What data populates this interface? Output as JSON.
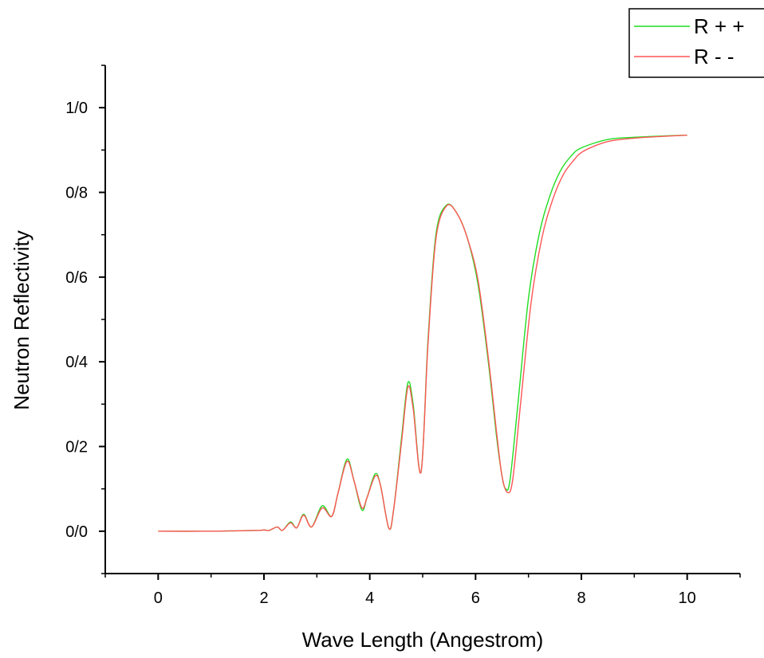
{
  "chart_data": {
    "type": "line",
    "title": "",
    "xlabel": "Wave Length (Angestrom)",
    "ylabel": "Neutron Reflectivity",
    "xlim": [
      -1,
      11
    ],
    "ylim": [
      -0.1,
      1.1
    ],
    "x_ticks": [
      0,
      2,
      4,
      6,
      8,
      10
    ],
    "x_tick_labels": [
      "0",
      "2",
      "4",
      "6",
      "8",
      "10"
    ],
    "y_ticks": [
      0.0,
      0.2,
      0.4,
      0.6,
      0.8,
      1.0
    ],
    "y_tick_labels": [
      "0/0",
      "0/2",
      "0/4",
      "0/6",
      "0/8",
      "1/0"
    ],
    "grid": false,
    "legend_position": "top-right",
    "series": [
      {
        "name": "R + +",
        "color": "#22dd22",
        "points": [
          [
            0,
            0.0
          ],
          [
            1.0,
            0.0
          ],
          [
            1.5,
            0.001
          ],
          [
            1.9,
            0.002
          ],
          [
            2.0,
            0.003
          ],
          [
            2.1,
            0.002
          ],
          [
            2.25,
            0.01
          ],
          [
            2.35,
            0.002
          ],
          [
            2.5,
            0.022
          ],
          [
            2.62,
            0.008
          ],
          [
            2.75,
            0.04
          ],
          [
            2.9,
            0.01
          ],
          [
            3.1,
            0.06
          ],
          [
            3.28,
            0.035
          ],
          [
            3.4,
            0.09
          ],
          [
            3.57,
            0.17
          ],
          [
            3.7,
            0.12
          ],
          [
            3.85,
            0.05
          ],
          [
            3.95,
            0.08
          ],
          [
            4.1,
            0.135
          ],
          [
            4.2,
            0.11
          ],
          [
            4.36,
            0.007
          ],
          [
            4.45,
            0.05
          ],
          [
            4.6,
            0.22
          ],
          [
            4.72,
            0.35
          ],
          [
            4.82,
            0.3
          ],
          [
            4.97,
            0.14
          ],
          [
            5.1,
            0.45
          ],
          [
            5.25,
            0.7
          ],
          [
            5.45,
            0.77
          ],
          [
            5.65,
            0.75
          ],
          [
            5.85,
            0.69
          ],
          [
            6.05,
            0.58
          ],
          [
            6.25,
            0.39
          ],
          [
            6.4,
            0.22
          ],
          [
            6.5,
            0.13
          ],
          [
            6.57,
            0.1
          ],
          [
            6.65,
            0.12
          ],
          [
            6.8,
            0.3
          ],
          [
            7.0,
            0.55
          ],
          [
            7.2,
            0.7
          ],
          [
            7.4,
            0.79
          ],
          [
            7.6,
            0.85
          ],
          [
            7.8,
            0.885
          ],
          [
            8.0,
            0.905
          ],
          [
            8.5,
            0.925
          ],
          [
            9.0,
            0.93
          ],
          [
            9.5,
            0.933
          ],
          [
            10.0,
            0.935
          ]
        ]
      },
      {
        "name": "R - -",
        "color": "#ff5555",
        "points": [
          [
            0,
            0.0
          ],
          [
            1.0,
            0.0
          ],
          [
            1.5,
            0.001
          ],
          [
            1.9,
            0.002
          ],
          [
            2.0,
            0.003
          ],
          [
            2.1,
            0.002
          ],
          [
            2.25,
            0.01
          ],
          [
            2.35,
            0.002
          ],
          [
            2.5,
            0.02
          ],
          [
            2.62,
            0.008
          ],
          [
            2.75,
            0.038
          ],
          [
            2.9,
            0.01
          ],
          [
            3.1,
            0.055
          ],
          [
            3.28,
            0.035
          ],
          [
            3.4,
            0.09
          ],
          [
            3.57,
            0.165
          ],
          [
            3.7,
            0.12
          ],
          [
            3.85,
            0.055
          ],
          [
            3.95,
            0.08
          ],
          [
            4.1,
            0.13
          ],
          [
            4.2,
            0.11
          ],
          [
            4.36,
            0.007
          ],
          [
            4.45,
            0.05
          ],
          [
            4.6,
            0.21
          ],
          [
            4.72,
            0.34
          ],
          [
            4.82,
            0.29
          ],
          [
            4.97,
            0.14
          ],
          [
            5.1,
            0.44
          ],
          [
            5.25,
            0.69
          ],
          [
            5.45,
            0.768
          ],
          [
            5.65,
            0.75
          ],
          [
            5.85,
            0.69
          ],
          [
            6.05,
            0.59
          ],
          [
            6.25,
            0.4
          ],
          [
            6.4,
            0.23
          ],
          [
            6.5,
            0.13
          ],
          [
            6.6,
            0.092
          ],
          [
            6.7,
            0.12
          ],
          [
            6.85,
            0.3
          ],
          [
            7.05,
            0.54
          ],
          [
            7.25,
            0.69
          ],
          [
            7.45,
            0.78
          ],
          [
            7.65,
            0.84
          ],
          [
            7.85,
            0.875
          ],
          [
            8.05,
            0.898
          ],
          [
            8.5,
            0.92
          ],
          [
            9.0,
            0.928
          ],
          [
            9.5,
            0.932
          ],
          [
            10.0,
            0.935
          ]
        ]
      }
    ]
  }
}
